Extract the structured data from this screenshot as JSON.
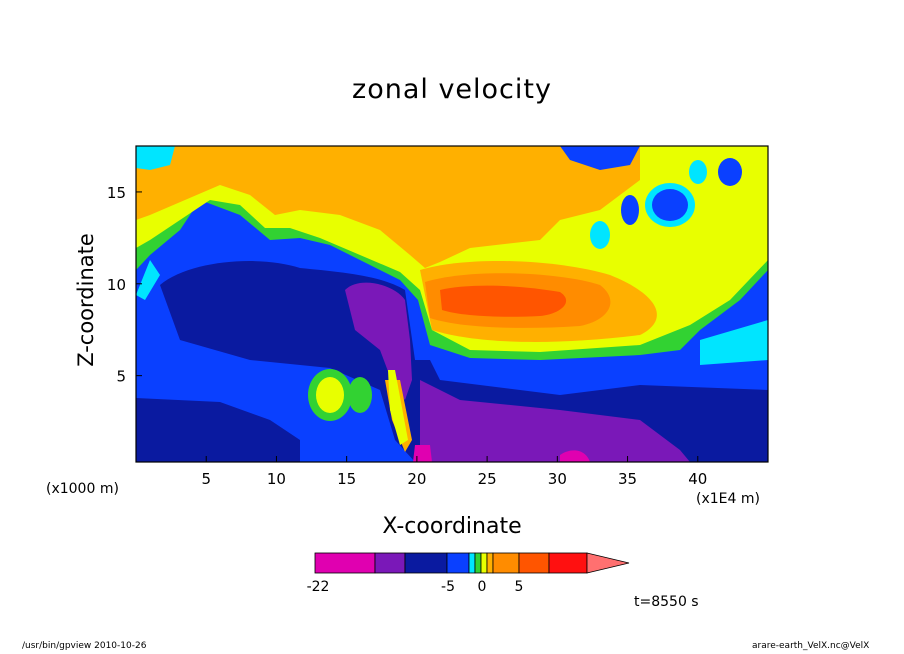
{
  "chart_data": {
    "type": "heatmap",
    "title": "zonal velocity",
    "xlabel": "X-coordinate",
    "ylabel": "Z-coordinate",
    "x_unit": "(x1E4 m)",
    "y_unit": "(x1000 m)",
    "x_ticks": [
      5,
      10,
      15,
      20,
      25,
      30,
      35,
      40
    ],
    "y_ticks": [
      5,
      10,
      15
    ],
    "xlim": [
      0,
      45
    ],
    "ylim": [
      0.3,
      17.5
    ],
    "colorbar": {
      "levels": [
        -22,
        -5,
        0,
        5
      ],
      "tick_labels": [
        "-22",
        "-5",
        "0",
        "5"
      ],
      "colors": [
        "#e000b0",
        "#7a18b8",
        "#0a1aa0",
        "#0a40ff",
        "#00e5ff",
        "#32d232",
        "#e8ff00",
        "#ffb000",
        "#ff8c00",
        "#ff5500",
        "#ff1010",
        "#ff7070"
      ]
    },
    "time_label": "t=8550 s"
  },
  "footer": {
    "left": "/usr/bin/gpview   2010-10-26",
    "right": "arare-earth_VelX.nc@VelX"
  }
}
